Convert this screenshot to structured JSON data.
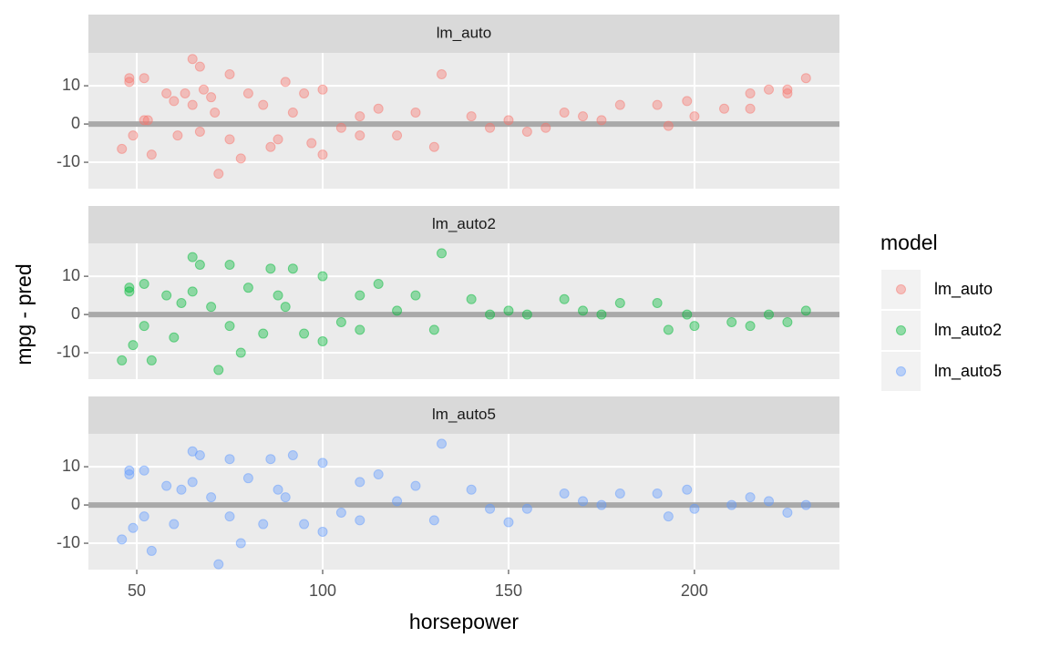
{
  "chart_data": {
    "type": "scatter",
    "x_label": "horsepower",
    "y_label": "mpg - pred",
    "legend_title": "model",
    "legend_position": "right",
    "grid": true,
    "hline": 0,
    "xlim": [
      37,
      239
    ],
    "xticks": [
      50,
      100,
      150,
      200
    ],
    "ylim": [
      -16.9,
      18.6
    ],
    "yticks": [
      -10,
      0,
      10
    ],
    "series": [
      {
        "name": "lm_auto",
        "color": "#F8766D",
        "x": [
          46,
          48,
          48,
          49,
          52,
          52,
          53,
          54,
          58,
          60,
          61,
          63,
          65,
          65,
          67,
          67,
          68,
          70,
          71,
          72,
          75,
          75,
          78,
          80,
          84,
          86,
          88,
          90,
          92,
          95,
          97,
          100,
          100,
          105,
          110,
          110,
          115,
          120,
          125,
          130,
          132,
          140,
          145,
          150,
          155,
          160,
          165,
          170,
          175,
          180,
          190,
          193,
          198,
          200,
          208,
          215,
          215,
          220,
          225,
          225,
          230
        ],
        "values": [
          -6.5,
          12,
          11,
          -3,
          12,
          1,
          1,
          -8,
          8,
          6,
          -3,
          8,
          17,
          5,
          15,
          -2,
          9,
          7,
          3,
          -13,
          13,
          -4,
          -9,
          8,
          5,
          -6,
          -4,
          11,
          3,
          8,
          -5,
          9,
          -8,
          -1,
          -3,
          2,
          4,
          -3,
          3,
          -6,
          13,
          2,
          -1,
          1,
          -2,
          -1,
          3,
          2,
          1,
          5,
          5,
          -0.5,
          6,
          2,
          4,
          8,
          4,
          9,
          9,
          8,
          12
        ]
      },
      {
        "name": "lm_auto2",
        "color": "#00BA38",
        "x": [
          46,
          48,
          48,
          49,
          52,
          52,
          54,
          58,
          60,
          62,
          65,
          65,
          67,
          70,
          72,
          75,
          75,
          78,
          80,
          84,
          86,
          88,
          90,
          92,
          95,
          100,
          100,
          105,
          110,
          110,
          115,
          120,
          125,
          130,
          132,
          140,
          145,
          150,
          155,
          165,
          170,
          175,
          180,
          190,
          193,
          198,
          200,
          210,
          215,
          220,
          225,
          230
        ],
        "values": [
          -12,
          7,
          6,
          -8,
          8,
          -3,
          -12,
          5,
          -6,
          3,
          15,
          6,
          13,
          2,
          -14.5,
          13,
          -3,
          -10,
          7,
          -5,
          12,
          5,
          2,
          12,
          -5,
          10,
          -7,
          -2,
          5,
          -4,
          8,
          1,
          5,
          -4,
          16,
          4,
          0,
          1,
          0,
          4,
          1,
          0,
          3,
          3,
          -4,
          0,
          -3,
          -2,
          -3,
          0,
          -2,
          1
        ]
      },
      {
        "name": "lm_auto5",
        "color": "#619CFF",
        "x": [
          46,
          48,
          48,
          49,
          52,
          52,
          54,
          58,
          60,
          62,
          65,
          65,
          67,
          70,
          72,
          75,
          75,
          78,
          80,
          84,
          86,
          88,
          90,
          92,
          95,
          100,
          100,
          105,
          110,
          110,
          115,
          120,
          125,
          130,
          132,
          140,
          145,
          150,
          155,
          165,
          170,
          175,
          180,
          190,
          193,
          198,
          200,
          210,
          215,
          220,
          225,
          230
        ],
        "values": [
          -9,
          9,
          8,
          -6,
          9,
          -3,
          -12,
          5,
          -5,
          4,
          14,
          6,
          13,
          2,
          -15.5,
          12,
          -3,
          -10,
          7,
          -5,
          12,
          4,
          2,
          13,
          -5,
          11,
          -7,
          -2,
          6,
          -4,
          8,
          1,
          5,
          -4,
          16,
          4,
          -1,
          -4.5,
          -1,
          3,
          1,
          0,
          3,
          3,
          -3,
          4,
          -1,
          0,
          2,
          1,
          -2,
          0
        ]
      }
    ]
  }
}
